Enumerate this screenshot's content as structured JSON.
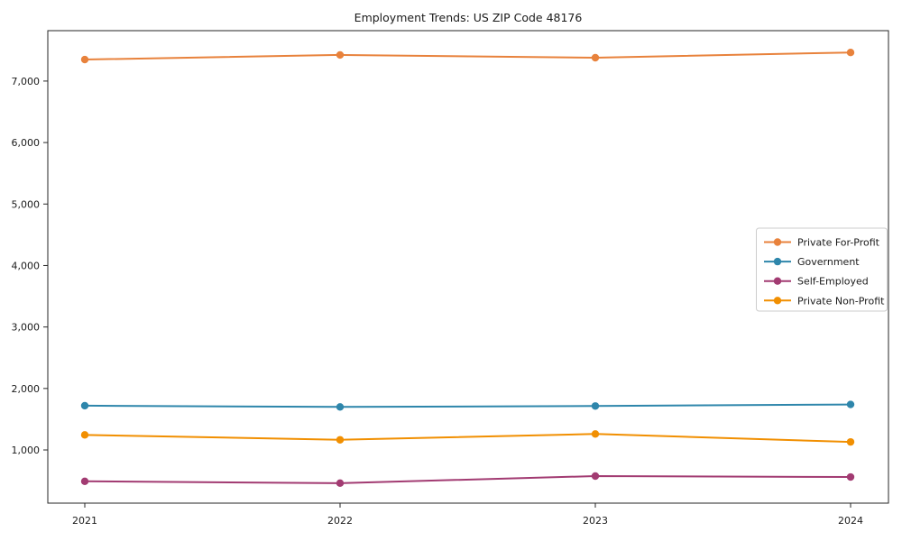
{
  "page": {
    "background": "#ffffff",
    "text_color": "#1a1a1a",
    "axis_color": "#262626",
    "legend_border_color": "#cccccc"
  },
  "chart_data": {
    "type": "line",
    "title": "Employment Trends: US ZIP Code 48176",
    "xlabel": "",
    "ylabel": "",
    "x": [
      "2021",
      "2022",
      "2023",
      "2024"
    ],
    "series": [
      {
        "name": "Private For-Profit",
        "color": "#E8823C",
        "values": [
          7350,
          7425,
          7380,
          7465
        ]
      },
      {
        "name": "Government",
        "color": "#2E86AB",
        "values": [
          1720,
          1700,
          1715,
          1740
        ]
      },
      {
        "name": "Self-Employed",
        "color": "#A23B72",
        "values": [
          490,
          460,
          575,
          560
        ]
      },
      {
        "name": "Private Non-Profit",
        "color": "#F18F01",
        "values": [
          1245,
          1165,
          1260,
          1130
        ]
      }
    ],
    "y_ticks": [
      1000,
      2000,
      3000,
      4000,
      5000,
      6000,
      7000
    ],
    "y_tick_labels": [
      "1,000",
      "2,000",
      "3,000",
      "4,000",
      "5,000",
      "6,000",
      "7,000"
    ],
    "x_tick_labels": [
      "2021",
      "2022",
      "2023",
      "2024"
    ],
    "ylim": [
      135,
      7820
    ],
    "grid": false,
    "legend_position": "center-right",
    "marker": "circle"
  }
}
